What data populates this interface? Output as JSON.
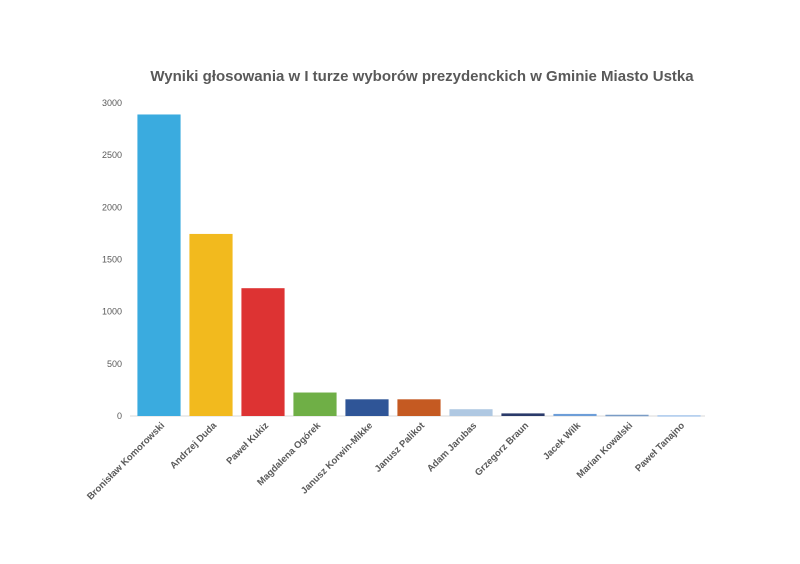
{
  "chart_data": {
    "type": "bar",
    "title": "Wyniki  głosowania w I turze wyborów prezydenckich w Gminie Miasto Ustka",
    "xlabel": "",
    "ylabel": "",
    "ylim": [
      0,
      3000
    ],
    "yticks": [
      0,
      500,
      1000,
      1500,
      2000,
      2500,
      3000
    ],
    "grid": false,
    "legend": "none",
    "categories": [
      "Bronisław Komorowski",
      "Andrzej Duda",
      "Paweł Kukiz",
      "Magdalena Ogórek",
      "Janusz Korwin-Mikke",
      "Janusz Palikot",
      "Adam Jarubas",
      "Grzegorz  Braun",
      "Jacek Wilk",
      "Marian Kowalski",
      "Paweł Tanajno"
    ],
    "values": [
      2890,
      1745,
      1225,
      225,
      160,
      160,
      65,
      25,
      20,
      12,
      8
    ],
    "colors": [
      "#3AABDF",
      "#F2BA1E",
      "#DD3333",
      "#6FAF46",
      "#2F5597",
      "#C55A22",
      "#AFC8E2",
      "#2A3A6A",
      "#6D9ED8",
      "#7A9CC6",
      "#A9C8EC"
    ]
  }
}
